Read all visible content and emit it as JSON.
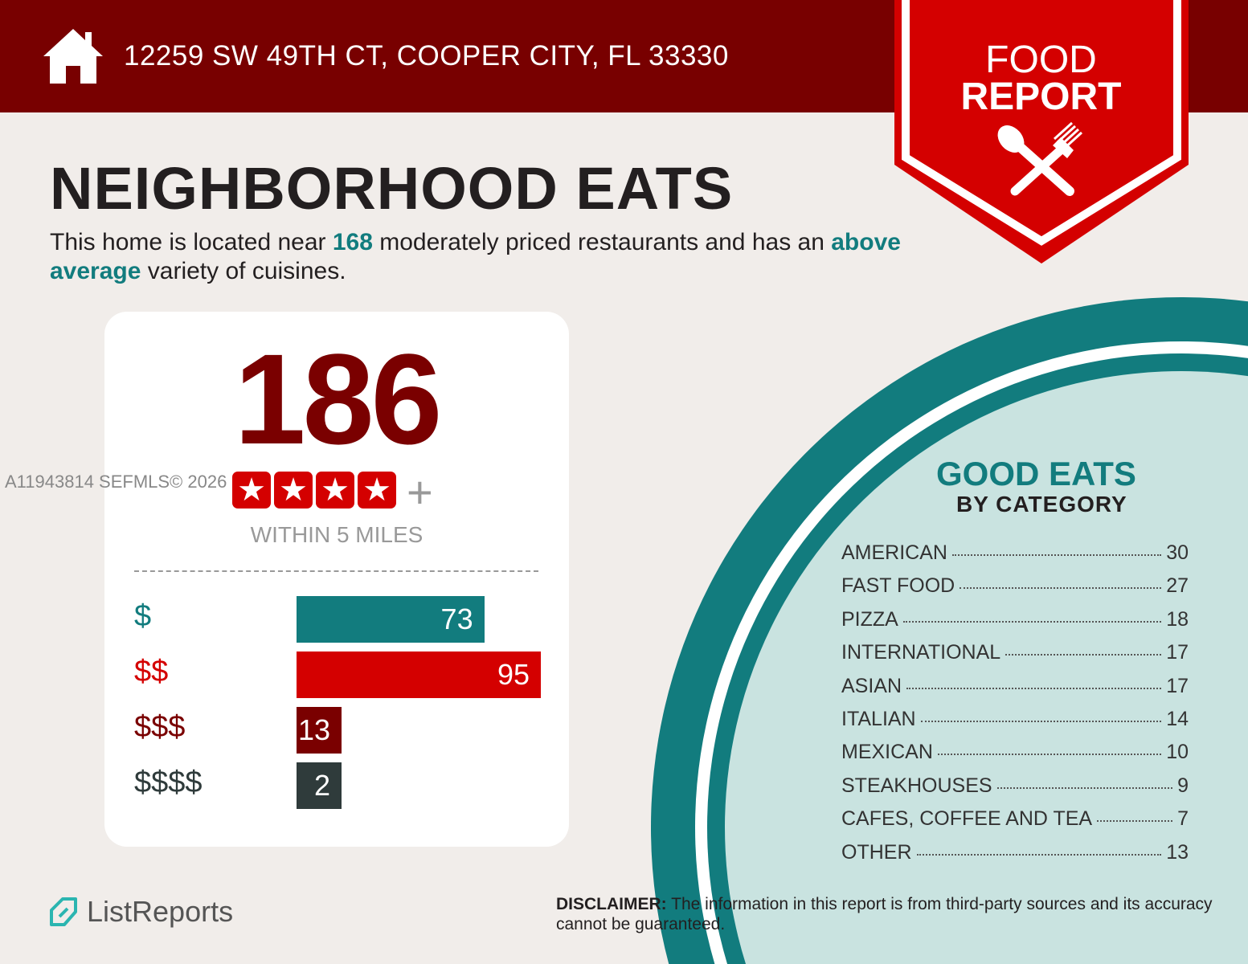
{
  "header": {
    "address": "12259 SW 49TH CT, COOPER CITY, FL 33330",
    "icon": "house-icon"
  },
  "badge": {
    "line1": "FOOD",
    "line2": "REPORT",
    "icon": "spoon-fork-icon"
  },
  "title": "NEIGHBORHOOD EATS",
  "intro": {
    "p1": "This home is located near ",
    "count": "168",
    "p2": " moderately priced restaurants and has an ",
    "variety": "above average",
    "p3": " variety of cuisines."
  },
  "summary": {
    "total": "186",
    "stars": 4,
    "plus": "+",
    "within": "WITHIN 5 MILES"
  },
  "watermark": "A11943814  SEFMLS© 2026",
  "price_tiers": [
    {
      "label": "$",
      "value": 73,
      "color": "#127c7e"
    },
    {
      "label": "$$",
      "value": 95,
      "color": "#d40000"
    },
    {
      "label": "$$$",
      "value": 13,
      "color": "#7a0000"
    },
    {
      "label": "$$$$",
      "value": 2,
      "color": "#2f3b3b"
    }
  ],
  "categories_heading": {
    "line1": "GOOD EATS",
    "line2": "BY CATEGORY"
  },
  "categories": [
    {
      "name": "AMERICAN",
      "count": "30"
    },
    {
      "name": "FAST FOOD",
      "count": "27"
    },
    {
      "name": "PIZZA",
      "count": "18"
    },
    {
      "name": "INTERNATIONAL",
      "count": "17"
    },
    {
      "name": "ASIAN",
      "count": "17"
    },
    {
      "name": "ITALIAN",
      "count": "14"
    },
    {
      "name": "MEXICAN",
      "count": "10"
    },
    {
      "name": "STEAKHOUSES",
      "count": "9"
    },
    {
      "name": "CAFES, COFFEE AND TEA",
      "count": "7"
    },
    {
      "name": "OTHER",
      "count": "13"
    }
  ],
  "footer": {
    "brand": "ListReports",
    "disclaimer_label": "DISCLAIMER:",
    "disclaimer": " The information in this report is from third-party sources and its accuracy cannot be guaranteed."
  }
}
